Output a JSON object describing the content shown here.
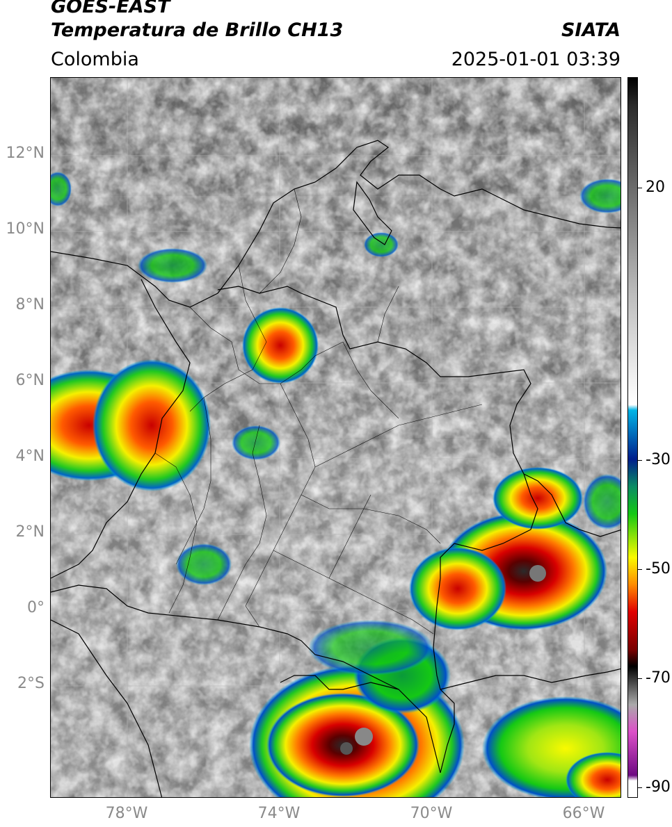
{
  "header": {
    "satellite": "GOES-EAST",
    "product": "Temperatura de Brillo CH13",
    "brand": "SIATA",
    "region": "Colombia",
    "timestamp": "2025-01-01 03:39"
  },
  "axes": {
    "lat_labels": [
      "12°N",
      "10°N",
      "8°N",
      "6°N",
      "4°N",
      "2°N",
      "0°",
      "2°S"
    ],
    "lon_labels": [
      "78°W",
      "74°W",
      "70°W",
      "66°W"
    ],
    "lat_range": [
      -5,
      14
    ],
    "lon_range": [
      -80,
      -65
    ]
  },
  "colorbar": {
    "labels": [
      "20",
      "-30",
      "-50",
      "-70",
      "-90"
    ],
    "values": [
      20,
      -30,
      -50,
      -70,
      -90
    ],
    "range": [
      -92,
      40
    ],
    "colors": {
      "warm_gray": "#6a6a6a",
      "light_gray": "#f0f0f0",
      "cyan": "#00b4e6",
      "dark_blue": "#001e8c",
      "green": "#14c814",
      "yellow": "#fafa00",
      "red": "#e10000",
      "black": "#000000",
      "magenta": "#dc50c8",
      "purple": "#6e0a82"
    }
  }
}
